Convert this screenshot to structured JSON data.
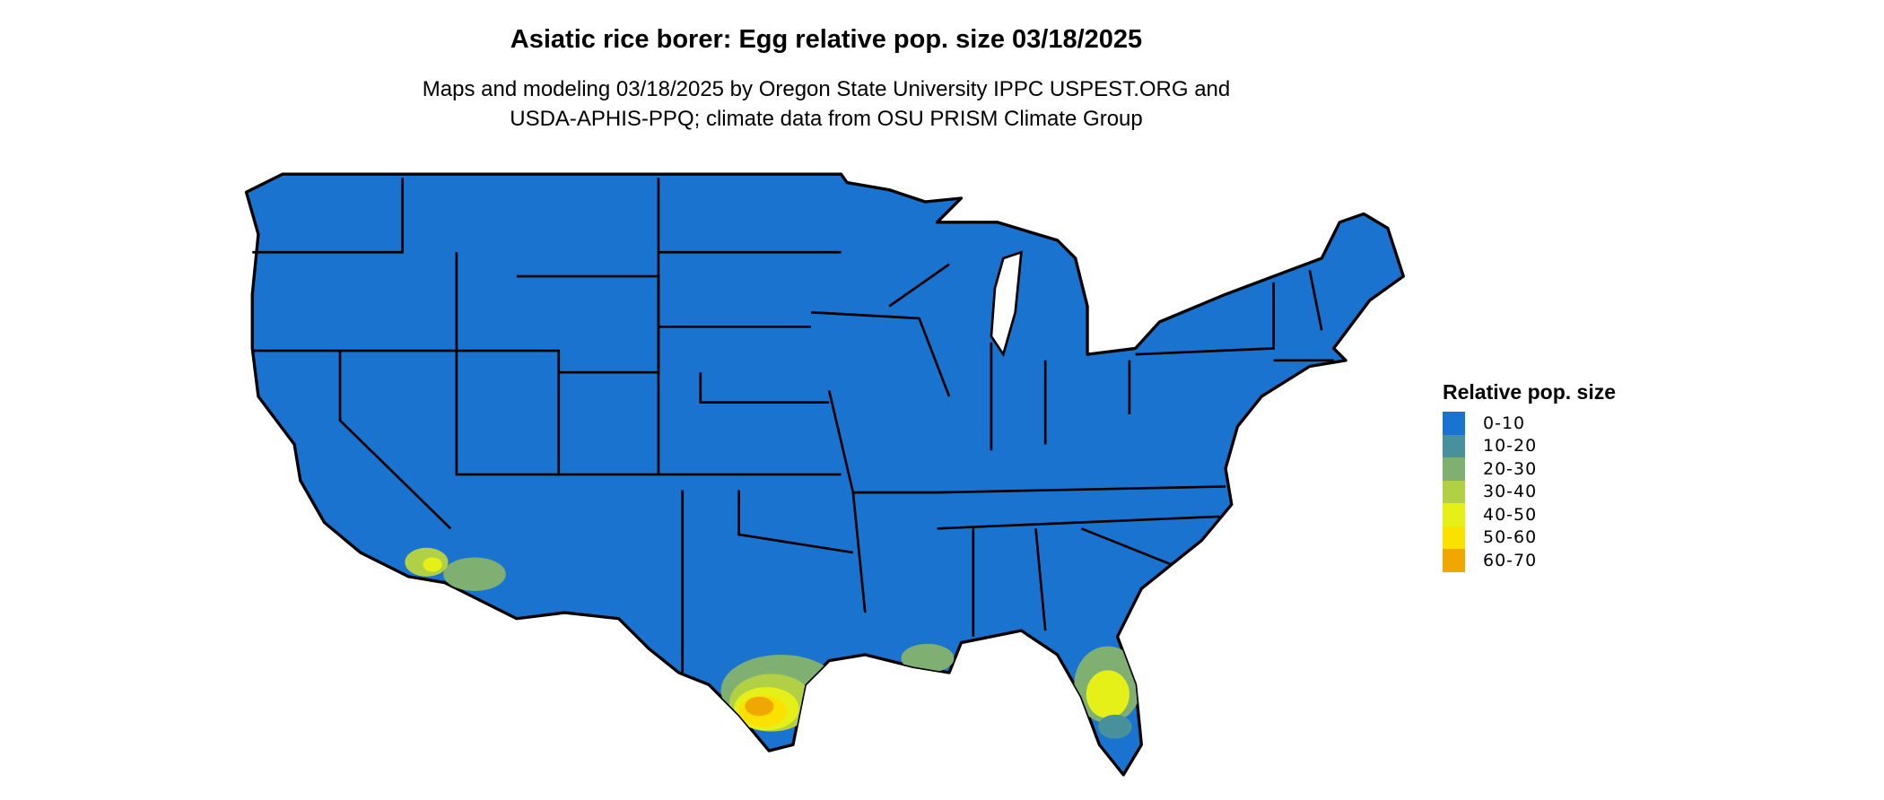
{
  "title": "Asiatic rice borer: Egg relative pop. size 03/18/2025",
  "subtitle_line1": "Maps and modeling 03/18/2025 by Oregon State University IPPC USPEST.ORG and",
  "subtitle_line2": "USDA-APHIS-PPQ; climate data from OSU PRISM Climate Group",
  "legend": {
    "title": "Relative pop. size",
    "items": [
      {
        "label": "0-10",
        "color": "#1a73cf"
      },
      {
        "label": "10-20",
        "color": "#48919c"
      },
      {
        "label": "20-30",
        "color": "#7fb072"
      },
      {
        "label": "30-40",
        "color": "#b1d045"
      },
      {
        "label": "40-50",
        "color": "#e5ef18"
      },
      {
        "label": "50-60",
        "color": "#fae100"
      },
      {
        "label": "60-70",
        "color": "#f0a800"
      }
    ]
  }
}
